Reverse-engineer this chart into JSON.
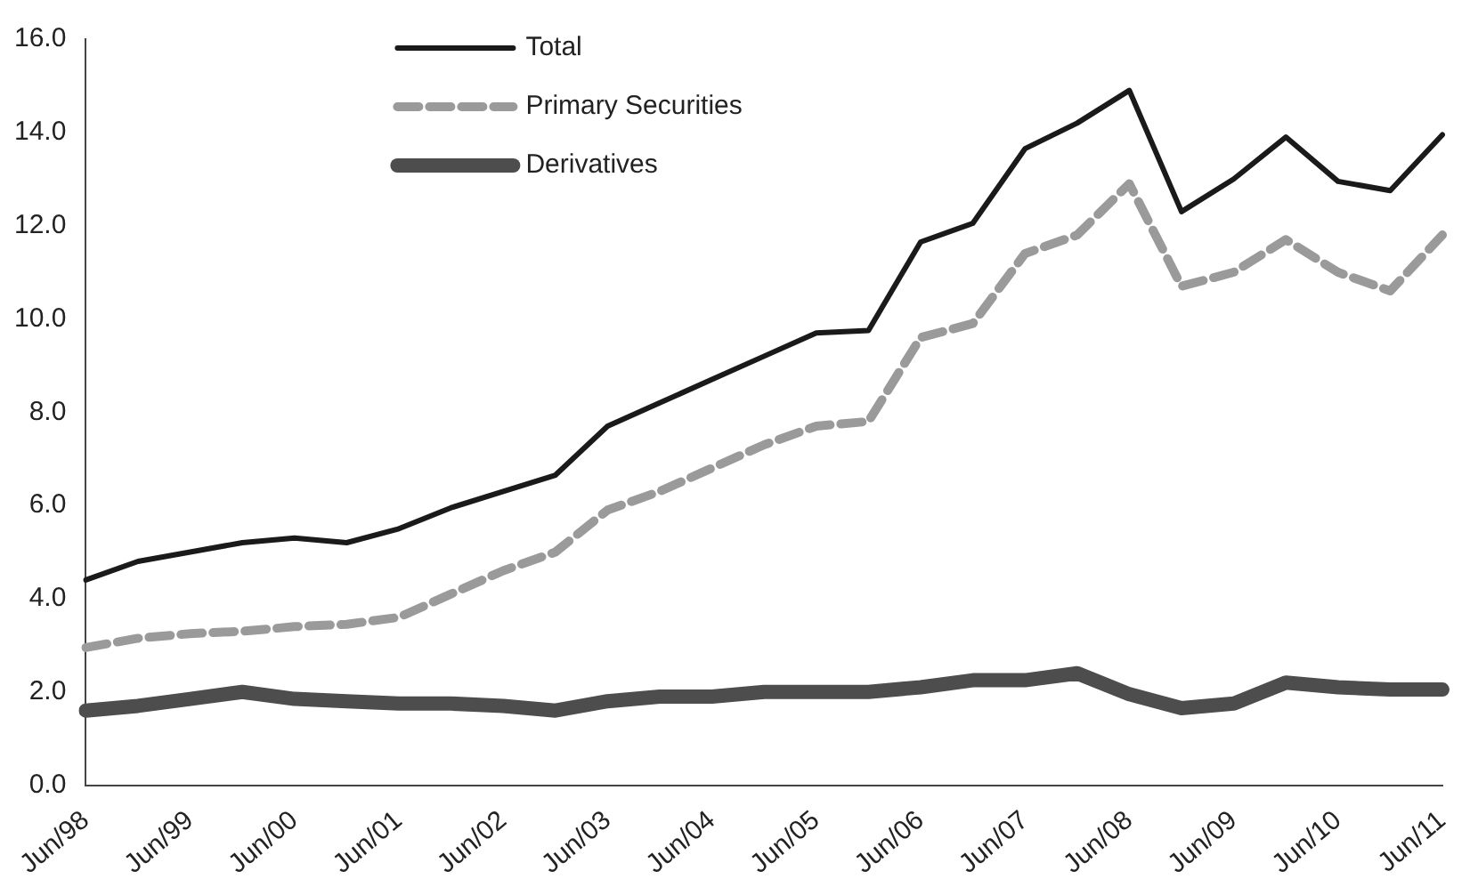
{
  "chart_data": {
    "type": "line",
    "categories": [
      "Jun/98",
      null,
      "Jun/99",
      null,
      "Jun/00",
      null,
      "Jun/01",
      null,
      "Jun/02",
      null,
      "Jun/03",
      null,
      "Jun/04",
      null,
      "Jun/05",
      null,
      "Jun/06",
      null,
      "Jun/07",
      null,
      "Jun/08",
      null,
      "Jun/09",
      null,
      "Jun/10",
      null,
      "Jun/11"
    ],
    "series": [
      {
        "name": "Total",
        "color": "#1a1a1a",
        "values": [
          4.4,
          4.8,
          5.0,
          5.2,
          5.3,
          5.2,
          5.5,
          5.95,
          6.3,
          6.65,
          7.7,
          8.2,
          8.7,
          9.2,
          9.7,
          9.75,
          11.65,
          12.05,
          13.65,
          14.2,
          14.9,
          12.3,
          13.0,
          13.9,
          12.95,
          12.75,
          13.95
        ]
      },
      {
        "name": "Primary Securities",
        "color": "#9a9a9a",
        "line_style": "dashed",
        "values": [
          2.95,
          3.15,
          3.25,
          3.3,
          3.4,
          3.45,
          3.6,
          4.1,
          4.6,
          5.0,
          5.9,
          6.3,
          6.8,
          7.3,
          7.7,
          7.8,
          9.6,
          9.9,
          11.4,
          11.8,
          12.9,
          10.7,
          11.0,
          11.7,
          11.0,
          10.6,
          11.8
        ]
      },
      {
        "name": "Derivatives",
        "color": "#4d4d4d",
        "values": [
          1.6,
          1.7,
          1.85,
          2.0,
          1.85,
          1.8,
          1.75,
          1.75,
          1.7,
          1.6,
          1.8,
          1.9,
          1.9,
          2.0,
          2.0,
          2.0,
          2.1,
          2.25,
          2.25,
          2.4,
          1.95,
          1.65,
          1.75,
          2.2,
          2.1,
          2.05,
          2.05
        ]
      }
    ],
    "ylim": [
      0,
      16
    ],
    "yticks": [
      {
        "value": 0,
        "label": "0.0"
      },
      {
        "value": 2,
        "label": "2.0"
      },
      {
        "value": 4,
        "label": "4.0"
      },
      {
        "value": 6,
        "label": "6.0"
      },
      {
        "value": 8,
        "label": "8.0"
      },
      {
        "value": 10,
        "label": "10.0"
      },
      {
        "value": 12,
        "label": "12.0"
      },
      {
        "value": 14,
        "label": "14.0"
      },
      {
        "value": 16,
        "label": "16.0"
      }
    ],
    "grid": false,
    "legend": "top left",
    "marker": "none",
    "line_style": "solid"
  }
}
